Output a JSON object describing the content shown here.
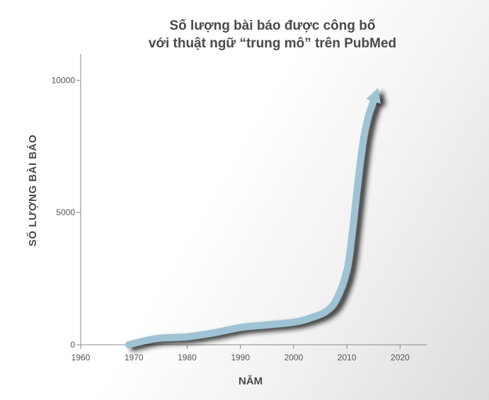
{
  "chart_data": {
    "type": "line",
    "title_line1": "Số lượng bài báo được công bố",
    "title_line2": "với thuật ngữ “trung mô” trên PubMed",
    "xlabel": "NĂM",
    "ylabel": "SỐ LƯỢNG BÀI BÁO",
    "xlim": [
      1960,
      2025
    ],
    "ylim": [
      0,
      11000
    ],
    "x_ticks": [
      1960,
      1970,
      1980,
      1990,
      2000,
      2010,
      2020
    ],
    "y_ticks": [
      0,
      5000,
      10000
    ],
    "grid": false,
    "series": [
      {
        "color": "#9ec3d4",
        "x": [
          1969,
          1972,
          1975,
          1980,
          1985,
          1990,
          1995,
          2000,
          2003,
          2006,
          2008,
          2010,
          2011,
          2012,
          2013,
          2014,
          2015
        ],
        "y": [
          0,
          150,
          250,
          300,
          450,
          650,
          750,
          850,
          1000,
          1250,
          1700,
          2800,
          4200,
          6000,
          7600,
          8600,
          9200
        ]
      }
    ]
  }
}
